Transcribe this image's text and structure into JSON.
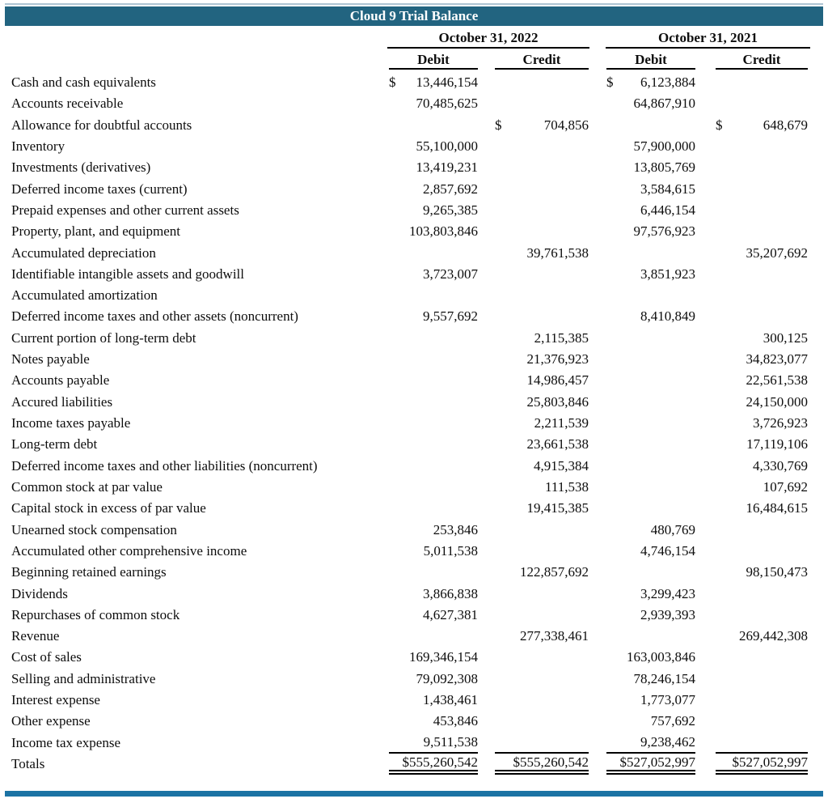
{
  "title": "Cloud 9 Trial Balance",
  "colors": {
    "header_bg": "#226480",
    "header_text": "#ffffff",
    "top_line": "#aec4d2",
    "bottom_bar": "#1c73a4",
    "rule": "#000000"
  },
  "table": {
    "groups": [
      {
        "label": "October 31, 2022"
      },
      {
        "label": "October 31, 2021"
      }
    ],
    "subheaders": [
      "Debit",
      "Credit",
      "Debit",
      "Credit"
    ],
    "rows": [
      {
        "label": "Cash and cash equivalents",
        "d22s": "$",
        "d22": "13,446,154",
        "d21s": "$",
        "d21": "6,123,884"
      },
      {
        "label": "Accounts receivable",
        "d22": "70,485,625",
        "d21": "64,867,910"
      },
      {
        "label": "Allowance for doubtful accounts",
        "c22s": "$",
        "c22": "704,856",
        "c21s": "$",
        "c21": "648,679"
      },
      {
        "label": "Inventory",
        "d22": "55,100,000",
        "d21": "57,900,000"
      },
      {
        "label": "Investments (derivatives)",
        "d22": "13,419,231",
        "d21": "13,805,769"
      },
      {
        "label": "Deferred income taxes (current)",
        "d22": "2,857,692",
        "d21": "3,584,615"
      },
      {
        "label": "Prepaid expenses and other current assets",
        "d22": "9,265,385",
        "d21": "6,446,154"
      },
      {
        "label": "Property, plant, and equipment",
        "d22": "103,803,846",
        "d21": "97,576,923"
      },
      {
        "label": "Accumulated depreciation",
        "c22": "39,761,538",
        "c21": "35,207,692"
      },
      {
        "label": "Identifiable intangible assets and goodwill",
        "d22": "3,723,007",
        "d21": "3,851,923"
      },
      {
        "label": "Accumulated amortization"
      },
      {
        "label": "Deferred income taxes and other assets (noncurrent)",
        "d22": "9,557,692",
        "d21": "8,410,849"
      },
      {
        "label": "Current portion of long-term debt",
        "c22": "2,115,385",
        "c21": "300,125"
      },
      {
        "label": "Notes payable",
        "c22": "21,376,923",
        "c21": "34,823,077"
      },
      {
        "label": "Accounts payable",
        "c22": "14,986,457",
        "c21": "22,561,538"
      },
      {
        "label": "Accured liabilities",
        "c22": "25,803,846",
        "c21": "24,150,000"
      },
      {
        "label": "Income taxes payable",
        "c22": "2,211,539",
        "c21": "3,726,923"
      },
      {
        "label": "Long-term debt",
        "c22": "23,661,538",
        "c21": "17,119,106"
      },
      {
        "label": "Deferred income taxes and other liabilities (noncurrent)",
        "c22": "4,915,384",
        "c21": "4,330,769"
      },
      {
        "label": "Common stock at par value",
        "c22": "111,538",
        "c21": "107,692"
      },
      {
        "label": "Capital stock in excess of par value",
        "c22": "19,415,385",
        "c21": "16,484,615"
      },
      {
        "label": "Unearned stock compensation",
        "d22": "253,846",
        "d21": "480,769"
      },
      {
        "label": "Accumulated other comprehensive income",
        "d22": "5,011,538",
        "d21": "4,746,154"
      },
      {
        "label": "Beginning retained earnings",
        "c22": "122,857,692",
        "c21": "98,150,473"
      },
      {
        "label": "Dividends",
        "d22": "3,866,838",
        "d21": "3,299,423"
      },
      {
        "label": "Repurchases of common stock",
        "d22": "4,627,381",
        "d21": "2,939,393"
      },
      {
        "label": "Revenue",
        "c22": "277,338,461",
        "c21": "269,442,308"
      },
      {
        "label": "Cost of sales",
        "d22": "169,346,154",
        "d21": "163,003,846"
      },
      {
        "label": "Selling and administrative",
        "d22": "79,092,308",
        "d21": "78,246,154"
      },
      {
        "label": "Interest expense",
        "d22": "1,438,461",
        "d21": "1,773,077"
      },
      {
        "label": "Other expense",
        "d22": "453,846",
        "d21": "757,692"
      },
      {
        "label": "Income tax expense",
        "cls": "ul",
        "d22": "9,511,538",
        "d21": "9,238,462"
      },
      {
        "label": "Totals",
        "cls": "totals",
        "d22": "$555,260,542",
        "c22": "$555,260,542",
        "d21": "$527,052,997",
        "c21": "$527,052,997"
      }
    ]
  }
}
